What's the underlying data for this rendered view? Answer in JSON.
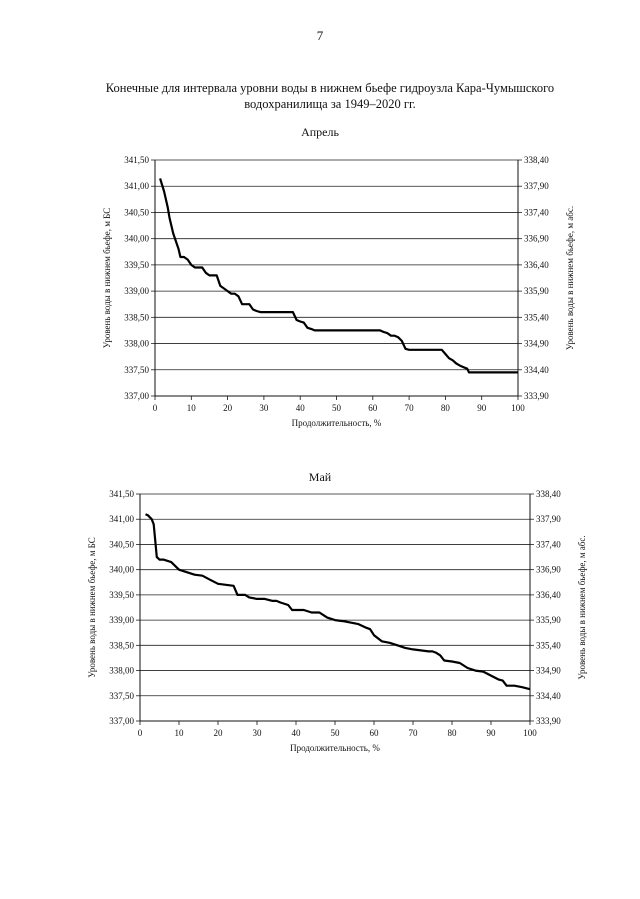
{
  "page": {
    "number": "7",
    "title_line1": "Конечные для интервала уровни воды в нижнем бьефе гидроузла Кара-Чумышского",
    "title_line2": "водохранилища за 1949–2020 гг."
  },
  "chart_data": [
    {
      "type": "line",
      "title": "Апрель",
      "xlabel": "Продолжительность, %",
      "ylabel_left": "Уровень воды в нижнем бьефе, м БС",
      "ylabel_right": "Уровень воды в нижнем бьефе, м абс.",
      "xlim": [
        0,
        100
      ],
      "ylim_left": [
        337.0,
        341.5
      ],
      "ylim_right": [
        333.9,
        338.4
      ],
      "x_ticks": [
        "0",
        "10",
        "20",
        "30",
        "40",
        "50",
        "60",
        "70",
        "80",
        "90",
        "100"
      ],
      "y_ticks_left": [
        "337,00",
        "337,50",
        "338,00",
        "338,50",
        "339,00",
        "339,50",
        "340,00",
        "340,50",
        "341,00",
        "341,50"
      ],
      "y_ticks_right": [
        "333,90",
        "334,40",
        "334,90",
        "335,40",
        "335,90",
        "336,40",
        "336,90",
        "337,40",
        "337,90",
        "338,40"
      ],
      "grid": true,
      "series": [
        {
          "x": [
            1.4,
            2.5,
            3.5,
            4,
            5,
            6,
            6.5,
            7,
            8,
            9,
            10,
            11,
            12,
            13,
            14,
            15,
            16,
            17,
            18,
            19,
            20,
            21,
            22,
            23,
            24,
            25,
            26,
            27,
            28,
            29,
            30,
            35,
            38,
            39,
            40,
            41,
            42,
            43,
            44,
            45,
            50,
            55,
            60,
            62,
            63,
            64,
            65,
            66,
            67,
            68,
            69,
            70,
            75,
            79,
            80,
            81,
            82,
            83,
            84,
            85,
            86,
            86.5,
            87,
            90,
            95,
            100
          ],
          "y": [
            341.15,
            340.9,
            340.6,
            340.4,
            340.1,
            339.9,
            339.8,
            339.65,
            339.65,
            339.6,
            339.5,
            339.45,
            339.45,
            339.45,
            339.35,
            339.3,
            339.3,
            339.3,
            339.1,
            339.05,
            339.0,
            338.95,
            338.95,
            338.9,
            338.75,
            338.75,
            338.75,
            338.65,
            338.62,
            338.6,
            338.6,
            338.6,
            338.6,
            338.45,
            338.42,
            338.4,
            338.3,
            338.28,
            338.25,
            338.25,
            338.25,
            338.25,
            338.25,
            338.25,
            338.22,
            338.2,
            338.15,
            338.15,
            338.12,
            338.05,
            337.9,
            337.88,
            337.88,
            337.88,
            337.8,
            337.72,
            337.68,
            337.62,
            337.58,
            337.55,
            337.52,
            337.45,
            337.45,
            337.45,
            337.45,
            337.45
          ]
        }
      ]
    },
    {
      "type": "line",
      "title": "Май",
      "xlabel": "Продолжительность, %",
      "ylabel_left": "Уровень воды в нижнем бьефе, м БС",
      "ylabel_right": "Уровень воды в нижнем бьефе, м абс.",
      "xlim": [
        0,
        100
      ],
      "ylim_left": [
        337.0,
        341.5
      ],
      "ylim_right": [
        333.9,
        338.4
      ],
      "x_ticks": [
        "0",
        "10",
        "20",
        "30",
        "40",
        "50",
        "60",
        "70",
        "80",
        "90",
        "100"
      ],
      "y_ticks_left": [
        "337,00",
        "337,50",
        "338,00",
        "338,50",
        "339,00",
        "339,50",
        "340,00",
        "340,50",
        "341,00",
        "341,50"
      ],
      "y_ticks_right": [
        "333,90",
        "334,40",
        "334,90",
        "335,40",
        "335,90",
        "336,40",
        "336,90",
        "337,40",
        "337,90",
        "338,40"
      ],
      "grid": true,
      "series": [
        {
          "x": [
            1.4,
            2,
            3,
            3.5,
            4,
            4.3,
            5,
            6,
            8,
            10,
            12,
            14,
            16,
            18,
            20,
            22,
            24,
            25,
            26,
            27,
            28,
            30,
            32,
            34,
            35,
            36,
            38,
            39,
            40,
            42,
            44,
            46,
            48,
            50,
            52,
            54,
            56,
            58,
            59,
            60,
            62,
            64,
            66,
            68,
            70,
            72,
            74,
            75,
            76,
            77,
            78,
            80,
            82,
            84,
            86,
            88,
            90,
            92,
            93,
            94,
            96,
            98,
            100
          ],
          "y": [
            341.1,
            341.08,
            341.0,
            340.9,
            340.5,
            340.25,
            340.2,
            340.2,
            340.15,
            340.0,
            339.95,
            339.9,
            339.88,
            339.8,
            339.72,
            339.7,
            339.68,
            339.5,
            339.5,
            339.5,
            339.45,
            339.42,
            339.42,
            339.38,
            339.38,
            339.35,
            339.3,
            339.2,
            339.2,
            339.2,
            339.15,
            339.15,
            339.05,
            339.0,
            338.98,
            338.95,
            338.92,
            338.85,
            338.82,
            338.7,
            338.58,
            338.55,
            338.5,
            338.45,
            338.42,
            338.4,
            338.38,
            338.38,
            338.35,
            338.3,
            338.2,
            338.18,
            338.15,
            338.05,
            338.0,
            337.98,
            337.9,
            337.82,
            337.8,
            337.7,
            337.7,
            337.67,
            337.63
          ]
        }
      ]
    }
  ]
}
